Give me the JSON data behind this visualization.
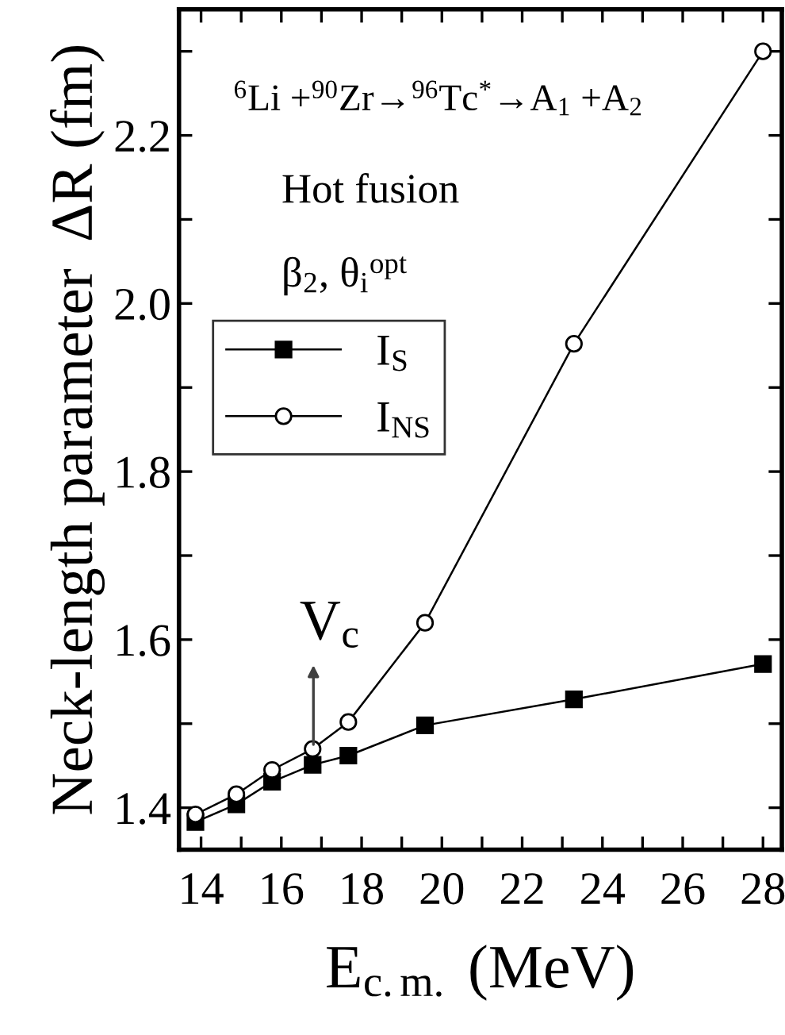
{
  "chart_data": {
    "type": "line",
    "xlabel": "E$_{c.m.}$ (MeV)",
    "ylabel": "Neck-length parameter  ΔR (fm)",
    "xlim": [
      13.45,
      28.47
    ],
    "ylim": [
      1.35,
      2.35
    ],
    "xticks": [
      14,
      {
        "value": 15,
        "label": null
      },
      16,
      {
        "value": 17,
        "label": null
      },
      18,
      {
        "value": 19,
        "label": null
      },
      20,
      {
        "value": 21,
        "label": null
      },
      22,
      {
        "value": 23,
        "label": null
      },
      24,
      {
        "value": 25,
        "label": null
      },
      26,
      {
        "value": 27,
        "label": null
      },
      28
    ],
    "yticks": [
      1.4,
      {
        "value": 1.5,
        "label": null
      },
      1.6,
      {
        "value": 1.7,
        "label": null
      },
      1.8,
      {
        "value": 1.9,
        "label": null
      },
      {
        "value": 2.0,
        "label": "2.0"
      },
      {
        "value": 2.1,
        "label": null
      },
      2.2,
      {
        "value": 2.3,
        "label": null
      }
    ],
    "legend": "left",
    "grid": false,
    "series": [
      {
        "name": "I$_{S}$",
        "color": "#000000",
        "marker": "square",
        "x": [
          13.86,
          14.88,
          15.77,
          16.78,
          17.67,
          19.58,
          23.29,
          28.0
        ],
        "values": [
          1.383,
          1.404,
          1.431,
          1.451,
          1.462,
          1.498,
          1.529,
          1.571
        ]
      },
      {
        "name": "I$_{NS}$",
        "color": "#000000",
        "marker": "circle",
        "x": [
          13.86,
          14.88,
          15.77,
          16.78,
          17.67,
          19.58,
          23.29,
          28.0
        ],
        "values": [
          1.392,
          1.416,
          1.445,
          1.47,
          1.502,
          1.62,
          1.952,
          2.3
        ]
      }
    ],
    "annotations": [
      "$^{6}$Li +$^{90}$Zr→$^{96}$Tc$^{*}$→A$_{1}$ +A$_{2}$",
      "Hot fusion",
      "β$_{2}$, θ$_{i}$$^{opt}$",
      "V$_{c}$"
    ]
  }
}
